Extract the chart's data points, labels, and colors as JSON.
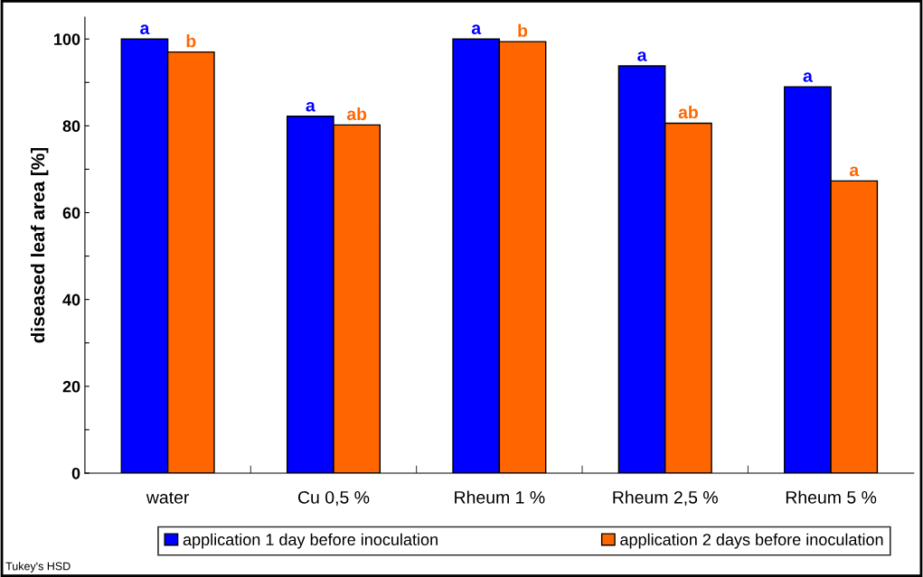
{
  "chart_data": {
    "type": "bar",
    "ylabel": "diseased leaf area [%]",
    "categories": [
      "water",
      "Cu 0,5 %",
      "Rheum 1 %",
      "Rheum 2,5 %",
      "Rheum 5 %"
    ],
    "series": [
      {
        "name": "application 1 day before inoculation",
        "color": "#0000ff",
        "values": [
          100,
          82.2,
          100,
          93.8,
          89.0
        ],
        "value_labels": [
          "a",
          "a",
          "a",
          "a",
          "a"
        ]
      },
      {
        "name": "application 2 days before inoculation",
        "color": "#ff6600",
        "values": [
          97.0,
          80.2,
          99.4,
          80.6,
          67.3
        ],
        "value_labels": [
          "b",
          "ab",
          "b",
          "ab",
          "a"
        ]
      }
    ],
    "ylim": [
      0,
      105
    ],
    "yticks": [
      0,
      {
        "value": 10,
        "label": null
      },
      20,
      {
        "value": 30,
        "label": null
      },
      40,
      {
        "value": 50,
        "label": null
      },
      60,
      {
        "value": 70,
        "label": null
      },
      80,
      {
        "value": 90,
        "label": null
      },
      100
    ],
    "grid": false,
    "legend": "bottom",
    "annotations": [
      "Tukey's HSD"
    ]
  }
}
